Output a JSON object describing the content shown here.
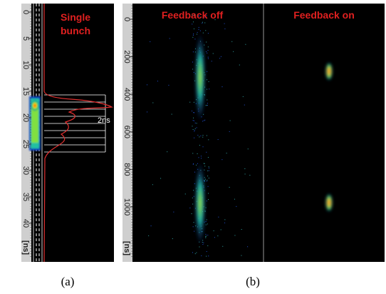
{
  "panel_a": {
    "title": [
      "Single",
      "bunch"
    ],
    "ruler_ticks": [
      0,
      5,
      10,
      15,
      20,
      25,
      30,
      35,
      40
    ],
    "ruler_unit": "[ns]",
    "annotation": "2ns",
    "caption": "(a)"
  },
  "panel_b": {
    "titles": [
      "Feedback off",
      "Feedback on"
    ],
    "ruler_ticks": [
      0,
      200,
      400,
      600,
      800,
      1000
    ],
    "ruler_unit": "[ns]",
    "caption": "(b)"
  }
}
